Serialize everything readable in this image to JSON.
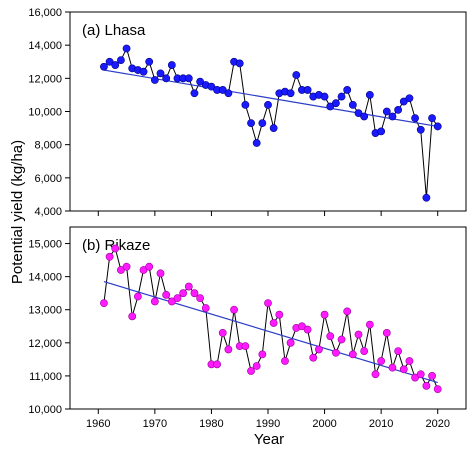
{
  "figure": {
    "xlabel": "Year",
    "ylabel": "Potential yield (kg/ha)"
  },
  "chart_data": [
    {
      "type": "scatter",
      "title": "(a) Lhasa",
      "xlim": [
        1955,
        2025
      ],
      "ylim": [
        4000,
        16000
      ],
      "yticks": [
        4000,
        6000,
        8000,
        10000,
        12000,
        14000,
        16000
      ],
      "xticks": [
        1960,
        1970,
        1980,
        1990,
        2000,
        2010,
        2020
      ],
      "show_x_tick_labels": false,
      "point_color": "#1a1aff",
      "point_edge": "#000080",
      "trend_color": "#2a3cc8",
      "trend": {
        "x": [
          1961,
          2020
        ],
        "y": [
          12500,
          9100
        ]
      },
      "series": [
        {
          "x": [
            1961,
            1962,
            1963,
            1964,
            1965,
            1966,
            1967,
            1968,
            1969,
            1970,
            1971,
            1972,
            1973,
            1974,
            1975,
            1976,
            1977,
            1978,
            1979,
            1980,
            1981,
            1982,
            1983,
            1984,
            1985,
            1986,
            1987,
            1988,
            1989,
            1990,
            1991,
            1992,
            1993,
            1994,
            1995,
            1996,
            1997,
            1998,
            1999,
            2000,
            2001,
            2002,
            2003,
            2004,
            2005,
            2006,
            2007,
            2008,
            2009,
            2010,
            2011,
            2012,
            2013,
            2014,
            2015,
            2016,
            2017,
            2018,
            2019,
            2020
          ],
          "y": [
            12700,
            13000,
            12800,
            13100,
            13800,
            12600,
            12500,
            12400,
            13000,
            11900,
            12300,
            12000,
            12800,
            12000,
            12000,
            12000,
            11100,
            11800,
            11600,
            11500,
            11300,
            11300,
            11100,
            13000,
            12900,
            10400,
            9300,
            8100,
            9300,
            10400,
            9000,
            11100,
            11200,
            11100,
            12200,
            11300,
            11300,
            10900,
            11000,
            10900,
            10300,
            10500,
            10900,
            11300,
            10400,
            9900,
            9700,
            11000,
            8700,
            8800,
            10000,
            9700,
            10100,
            10600,
            10800,
            9600,
            8900,
            4800,
            9600,
            9100
          ]
        }
      ]
    },
    {
      "type": "scatter",
      "title": "(b) Rikaze",
      "xlim": [
        1955,
        2025
      ],
      "ylim": [
        10000,
        15500
      ],
      "yticks": [
        10000,
        11000,
        12000,
        13000,
        14000,
        15000
      ],
      "xticks": [
        1960,
        1970,
        1980,
        1990,
        2000,
        2010,
        2020
      ],
      "xticklabels": [
        "1960",
        "1970",
        "1980",
        "1990",
        "2000",
        "2010",
        "2020"
      ],
      "show_x_tick_labels": true,
      "point_color": "#ff1aff",
      "point_edge": "#990099",
      "trend_color": "#2a3cc8",
      "trend": {
        "x": [
          1961,
          2020
        ],
        "y": [
          13850,
          10800
        ]
      },
      "series": [
        {
          "x": [
            1961,
            1962,
            1963,
            1964,
            1965,
            1966,
            1967,
            1968,
            1969,
            1970,
            1971,
            1972,
            1973,
            1974,
            1975,
            1976,
            1977,
            1978,
            1979,
            1980,
            1981,
            1982,
            1983,
            1984,
            1985,
            1986,
            1987,
            1988,
            1989,
            1990,
            1991,
            1992,
            1993,
            1994,
            1995,
            1996,
            1997,
            1998,
            1999,
            2000,
            2001,
            2002,
            2003,
            2004,
            2005,
            2006,
            2007,
            2008,
            2009,
            2010,
            2011,
            2012,
            2013,
            2014,
            2015,
            2016,
            2017,
            2018,
            2019,
            2020
          ],
          "y": [
            13200,
            14600,
            14850,
            14200,
            14300,
            12800,
            13400,
            14200,
            14300,
            13250,
            14100,
            13450,
            13250,
            13350,
            13500,
            13700,
            13500,
            13350,
            13050,
            11350,
            11350,
            12300,
            11800,
            13000,
            11900,
            11900,
            11150,
            11300,
            11650,
            13200,
            12600,
            12850,
            11450,
            12000,
            12450,
            12500,
            12400,
            11550,
            11800,
            12850,
            12200,
            11700,
            12100,
            12950,
            11650,
            12250,
            11750,
            12550,
            11050,
            11450,
            12300,
            11250,
            11750,
            11200,
            11450,
            10950,
            11050,
            10700,
            11000,
            10600
          ]
        }
      ]
    }
  ]
}
